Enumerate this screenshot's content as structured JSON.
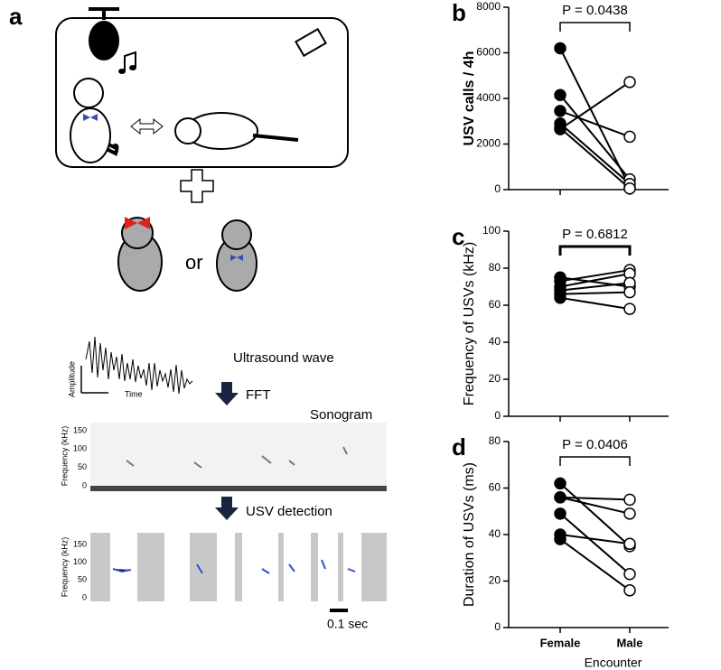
{
  "diagram": {
    "label": "a",
    "or_text": "or",
    "wave_label": "Ultrasound wave",
    "amplitude": "Amplitude",
    "time": "Time",
    "fft": "FFT",
    "sonogram": "Sonogram",
    "frequency_axis": "Frequency (kHz)",
    "sonogram_ticks": [
      "150",
      "100",
      "50",
      "0"
    ],
    "detection": "USV detection",
    "detection_frequency_axis": "Frequency (kHz)",
    "detection_ticks": [
      "150",
      "100",
      "50",
      "0"
    ],
    "scale_bar": "0.1 sec"
  },
  "chart_data": [
    {
      "type": "paired",
      "label": "b",
      "ylabel": "USV calls / 4h",
      "annotation": "P = 0.0438",
      "ylim": [
        0,
        8000
      ],
      "yticks": [
        0,
        2000,
        4000,
        6000,
        8000
      ],
      "marker_fills": [
        "#000000",
        "#ffffff"
      ],
      "color": "#000000",
      "series": [
        {
          "values": [
            6200,
            100
          ]
        },
        {
          "values": [
            4150,
            450
          ]
        },
        {
          "values": [
            3450,
            2320
          ]
        },
        {
          "values": [
            2900,
            250
          ]
        },
        {
          "values": [
            2700,
            50
          ]
        },
        {
          "values": [
            2650,
            4720
          ]
        }
      ]
    },
    {
      "type": "paired",
      "label": "c",
      "ylabel": "Frequency of USVs (kHz)",
      "annotation": "P = 0.6812",
      "ylim": [
        0,
        100
      ],
      "yticks": [
        0,
        20,
        40,
        60,
        80,
        100
      ],
      "marker_fills": [
        "#000000",
        "#ffffff"
      ],
      "color": "#000000",
      "series": [
        {
          "values": [
            75,
            70
          ]
        },
        {
          "values": [
            73,
            79
          ]
        },
        {
          "values": [
            70,
            77
          ]
        },
        {
          "values": [
            68,
            72
          ]
        },
        {
          "values": [
            66,
            67
          ]
        },
        {
          "values": [
            64,
            58
          ]
        }
      ]
    },
    {
      "type": "paired",
      "label": "d",
      "ylabel": "Duration of USVs (ms)",
      "annotation": "P = 0.0406",
      "xlabel": "Encounter",
      "categories": [
        "Female",
        "Male"
      ],
      "ylim": [
        0,
        80
      ],
      "yticks": [
        0,
        20,
        40,
        60,
        80
      ],
      "marker_fills": [
        "#000000",
        "#ffffff"
      ],
      "color": "#000000",
      "series": [
        {
          "values": [
            62,
            35
          ]
        },
        {
          "values": [
            56,
            55
          ]
        },
        {
          "values": [
            56,
            49
          ]
        },
        {
          "values": [
            49,
            23
          ]
        },
        {
          "values": [
            40,
            36
          ]
        },
        {
          "values": [
            38,
            16
          ]
        }
      ]
    }
  ]
}
